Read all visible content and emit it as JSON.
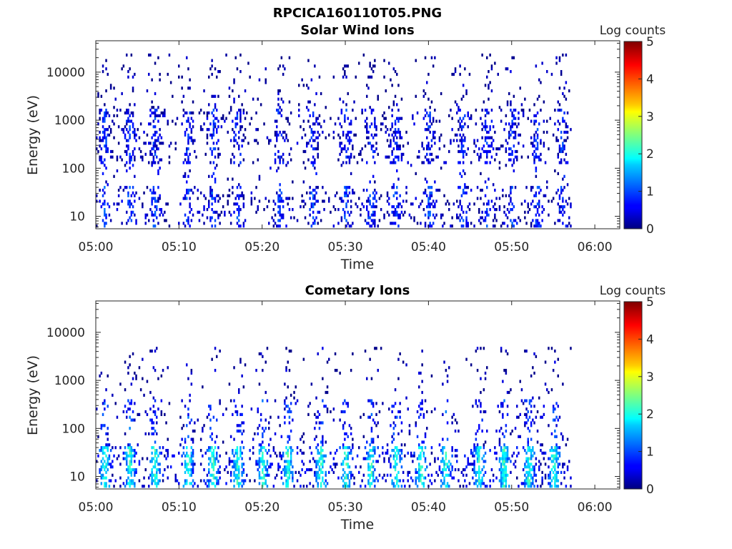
{
  "figure_title": "RPCICA160110T05.PNG",
  "chart_data": [
    {
      "type": "heatmap",
      "title": "Solar Wind Ions",
      "xlabel": "Time",
      "ylabel": "Energy (eV)",
      "x_ticks": [
        "05:00",
        "05:10",
        "05:20",
        "05:30",
        "05:40",
        "05:50",
        "06:00"
      ],
      "x_range_minutes": [
        0,
        63
      ],
      "data_end_minute": 57,
      "y_scale": "log",
      "y_ticks": [
        10,
        100,
        1000,
        10000
      ],
      "y_tick_labels": [
        "10",
        "100",
        "1000",
        "10000"
      ],
      "y_range": [
        5.5,
        45000
      ],
      "colorbar": {
        "label": "Log counts",
        "ticks": [
          "0",
          "1",
          "2",
          "3",
          "4",
          "5"
        ],
        "range": [
          0,
          5
        ],
        "colormap": "jet"
      },
      "bands": [
        {
          "energy_range": [
            6,
            45
          ],
          "density": 0.22,
          "mean_log_counts": 0.6
        },
        {
          "energy_range": [
            45,
            130
          ],
          "density": 0.05,
          "mean_log_counts": 0.4
        },
        {
          "energy_range": [
            130,
            1700
          ],
          "density": 0.22,
          "mean_log_counts": 0.5
        },
        {
          "energy_range": [
            1700,
            25000
          ],
          "density": 0.06,
          "mean_log_counts": 0.1
        }
      ],
      "burst_minutes": [
        1,
        4,
        7,
        11,
        14,
        17,
        22,
        26,
        30,
        33,
        36,
        40,
        44,
        47,
        50,
        53,
        56
      ]
    },
    {
      "type": "heatmap",
      "title": "Cometary Ions",
      "xlabel": "Time",
      "ylabel": "Energy (eV)",
      "x_ticks": [
        "05:00",
        "05:10",
        "05:20",
        "05:30",
        "05:40",
        "05:50",
        "06:00"
      ],
      "x_range_minutes": [
        0,
        63
      ],
      "data_end_minute": 57,
      "y_scale": "log",
      "y_ticks": [
        10,
        100,
        1000,
        10000
      ],
      "y_tick_labels": [
        "10",
        "100",
        "1000",
        "10000"
      ],
      "y_range": [
        5.5,
        45000
      ],
      "colorbar": {
        "label": "Log counts",
        "ticks": [
          "0",
          "1",
          "2",
          "3",
          "4",
          "5"
        ],
        "range": [
          0,
          5
        ],
        "colormap": "jet"
      },
      "bands": [
        {
          "energy_range": [
            6,
            45
          ],
          "density": 0.35,
          "mean_log_counts": 1.4
        },
        {
          "energy_range": [
            45,
            400
          ],
          "density": 0.12,
          "mean_log_counts": 0.6
        },
        {
          "energy_range": [
            400,
            5000
          ],
          "density": 0.04,
          "mean_log_counts": 0.1
        }
      ],
      "burst_minutes": [
        1,
        4,
        7,
        11,
        14,
        17,
        20,
        23,
        27,
        30,
        33,
        36,
        39,
        42,
        46,
        49,
        52,
        55
      ]
    }
  ]
}
